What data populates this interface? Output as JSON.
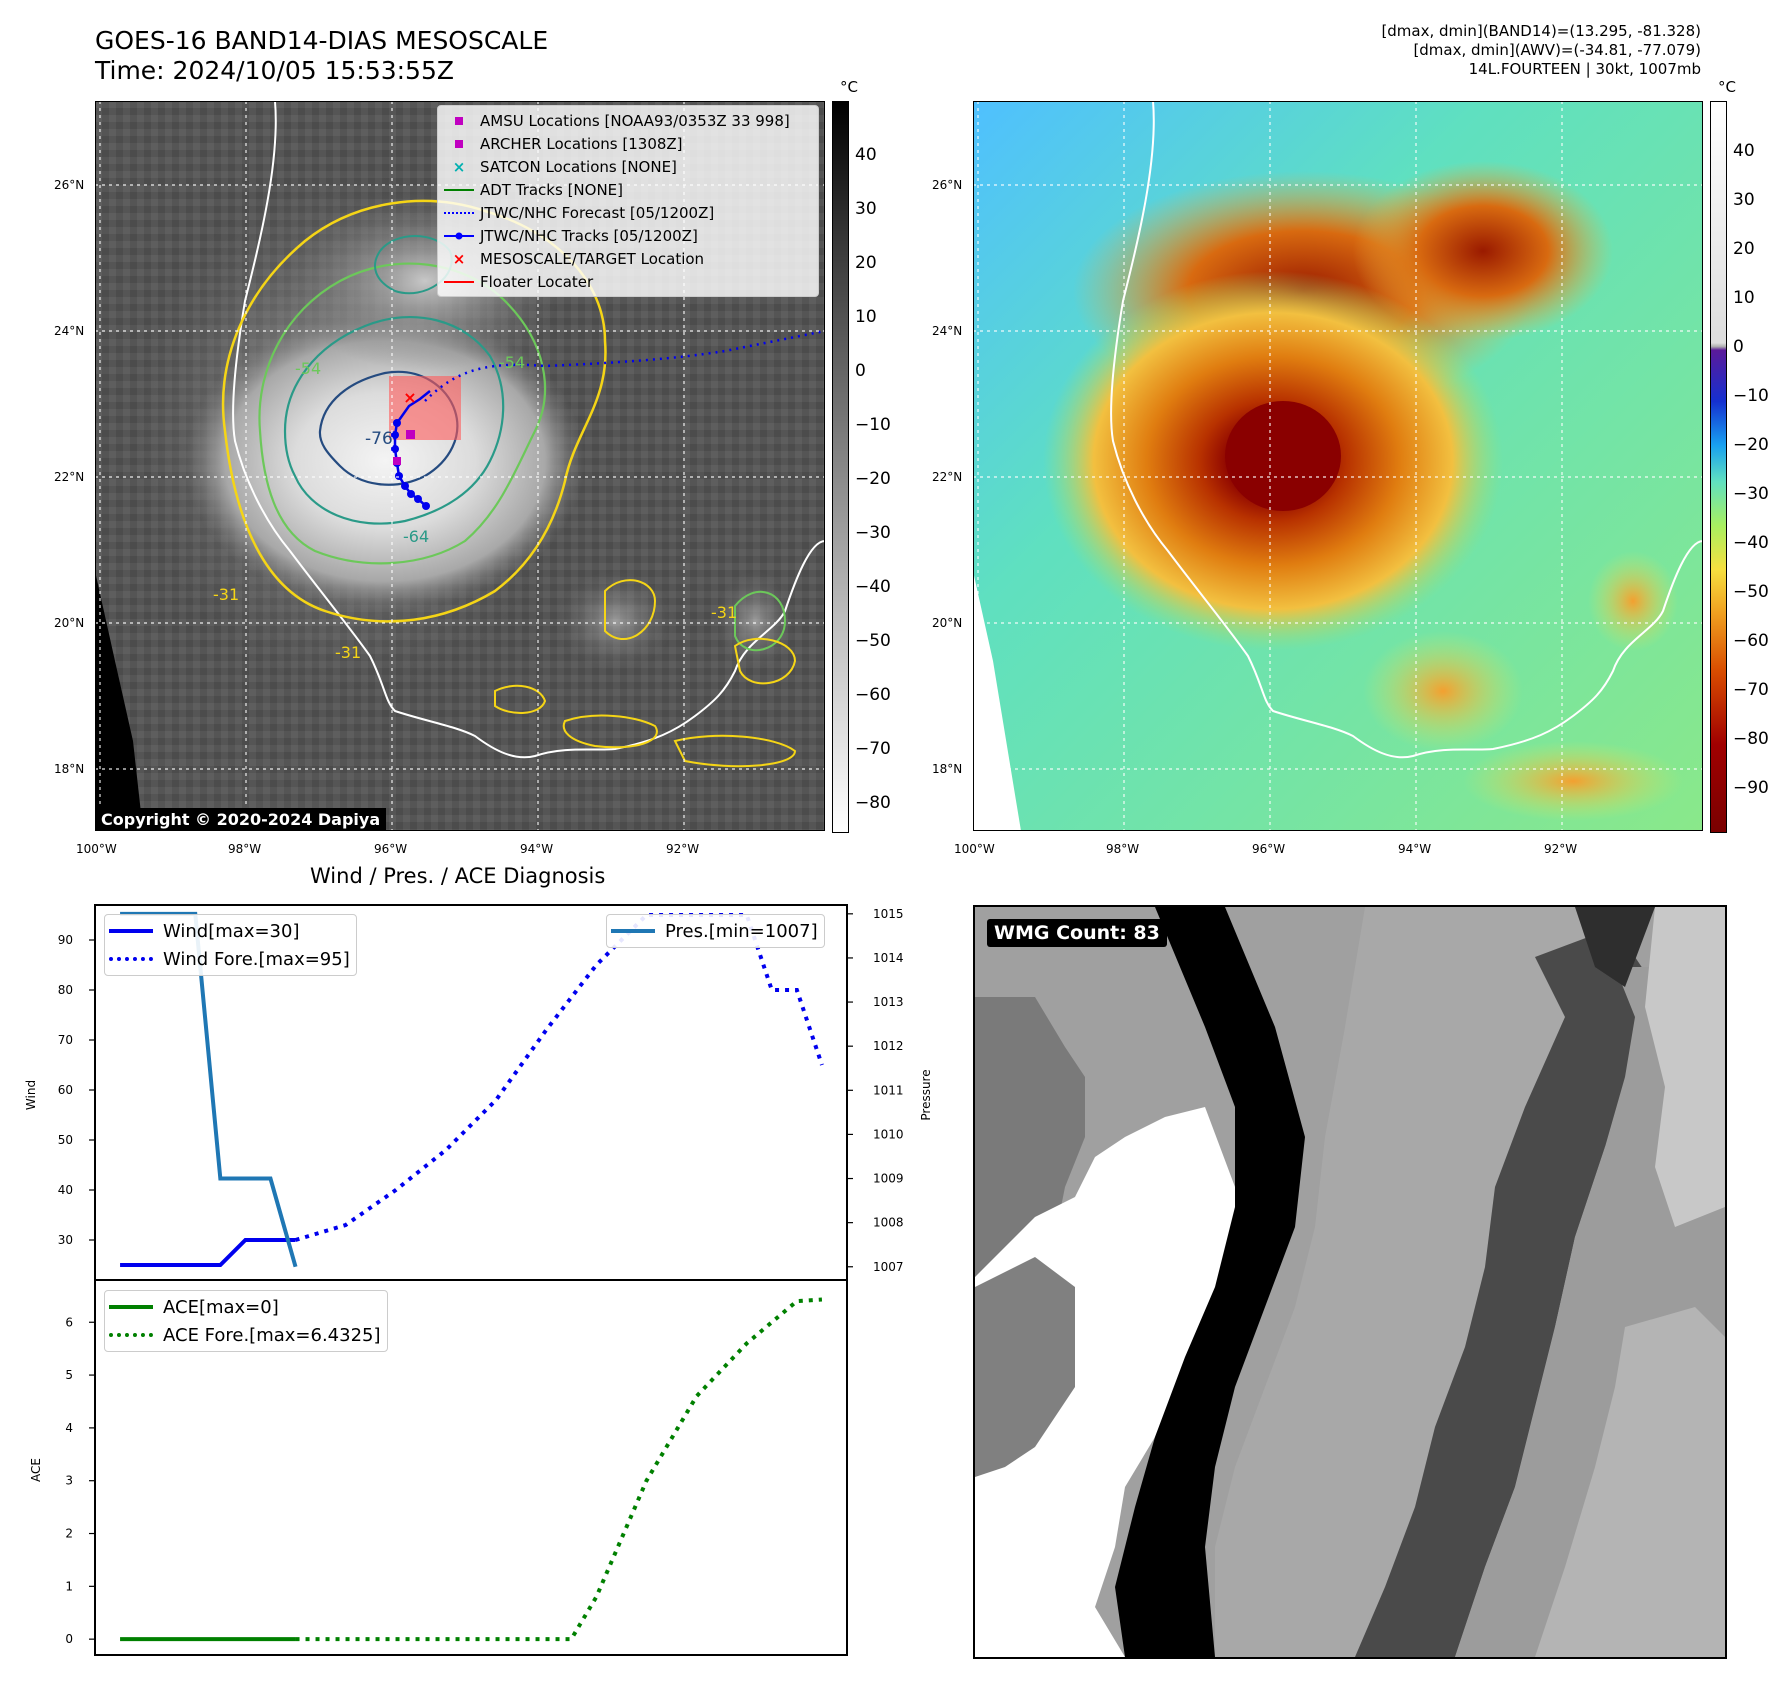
{
  "header": {
    "title": "GOES-16 BAND14-DIAS MESOSCALE",
    "time": "Time: 2024/10/05 15:53:55Z",
    "info_line1": "[dmax, dmin](BAND14)=(13.295, -81.328)",
    "info_line2": "[dmax, dmin](AWV)=(-34.81, -77.079)",
    "info_line3": "14L.FOURTEEN | 30kt, 1007mb"
  },
  "map_axes": {
    "lat_labels": [
      "26°N",
      "24°N",
      "22°N",
      "20°N",
      "18°N"
    ],
    "lon_labels": [
      "100°W",
      "98°W",
      "96°W",
      "94°W",
      "92°W"
    ]
  },
  "colorbar_left": {
    "unit": "°C",
    "ticks": [
      "40",
      "30",
      "20",
      "10",
      "0",
      "−10",
      "−20",
      "−30",
      "−40",
      "−50",
      "−60",
      "−70",
      "−80"
    ]
  },
  "colorbar_right": {
    "unit": "°C",
    "ticks": [
      "40",
      "30",
      "20",
      "10",
      "0",
      "−10",
      "−20",
      "−30",
      "−40",
      "−50",
      "−60",
      "−70",
      "−80",
      "−90"
    ]
  },
  "contour_labels": [
    "-76",
    "-64",
    "-54",
    "-54",
    "-31",
    "-31",
    "-31"
  ],
  "map_legend": [
    {
      "label": "AMSU Locations [NOAA93/0353Z 33 998]",
      "symbol": "square",
      "color": "#c000c0"
    },
    {
      "label": "ARCHER Locations [1308Z]",
      "symbol": "square",
      "color": "#c000c0"
    },
    {
      "label": "SATCON Locations [NONE]",
      "symbol": "x",
      "color": "#00b0b0"
    },
    {
      "label": "ADT Tracks [NONE]",
      "symbol": "line",
      "color": "#008000"
    },
    {
      "label": "JTWC/NHC Forecast [05/1200Z]",
      "symbol": "dotted",
      "color": "#0000ff"
    },
    {
      "label": "JTWC/NHC Tracks [05/1200Z]",
      "symbol": "line-dot",
      "color": "#0000ff"
    },
    {
      "label": "MESOSCALE/TARGET Location",
      "symbol": "x",
      "color": "#ff0000"
    },
    {
      "label": "Floater Locater",
      "symbol": "line",
      "color": "#ff0000"
    }
  ],
  "copyright": "Copyright © 2020-2024 Dapiya",
  "wmg_label": "WMG Count: 83",
  "chart_data": [
    {
      "type": "line",
      "title": "Wind / Pres. / ACE Diagnosis",
      "ylabel": "Wind",
      "ylim": [
        22,
        97
      ],
      "yticks": [
        30,
        40,
        50,
        60,
        70,
        80,
        90
      ],
      "y2label": "Pressure",
      "y2lim": [
        1006.7,
        1015.2
      ],
      "y2ticks": [
        1007,
        1008,
        1009,
        1010,
        1011,
        1012,
        1013,
        1014,
        1015
      ],
      "xlim": [
        0,
        30
      ],
      "series": [
        {
          "name": "Wind[max=30]",
          "axis": "left",
          "style": "solid",
          "color": "#0000ee",
          "x": [
            1,
            5,
            6,
            8
          ],
          "values": [
            25,
            25,
            30,
            30
          ]
        },
        {
          "name": "Wind Fore.[max=95]",
          "axis": "left",
          "style": "dotted",
          "color": "#0000ee",
          "x": [
            8,
            10,
            12,
            14,
            16,
            18,
            20,
            22,
            24,
            26,
            27,
            28,
            29
          ],
          "values": [
            30,
            33,
            40,
            48,
            58,
            72,
            85,
            95,
            95,
            95,
            80,
            80,
            65
          ]
        },
        {
          "name": "Pres.[min=1007]",
          "axis": "right",
          "style": "solid",
          "color": "#1f77b4",
          "x": [
            1,
            4,
            5,
            6,
            7,
            8
          ],
          "values": [
            1015,
            1015,
            1009,
            1009,
            1009,
            1007
          ]
        }
      ]
    },
    {
      "type": "line",
      "ylabel": "ACE",
      "ylim": [
        -0.3,
        6.8
      ],
      "yticks": [
        0,
        1,
        2,
        3,
        4,
        5,
        6
      ],
      "xlim": [
        0,
        30
      ],
      "series": [
        {
          "name": "ACE[max=0]",
          "style": "solid",
          "color": "#008000",
          "x": [
            1,
            8
          ],
          "values": [
            0,
            0
          ]
        },
        {
          "name": "ACE Fore.[max=6.4325]",
          "style": "dotted",
          "color": "#008000",
          "x": [
            8,
            19,
            20,
            22,
            24,
            26,
            28,
            29
          ],
          "values": [
            0,
            0,
            0.8,
            3.0,
            4.6,
            5.6,
            6.4,
            6.43
          ]
        }
      ]
    }
  ]
}
